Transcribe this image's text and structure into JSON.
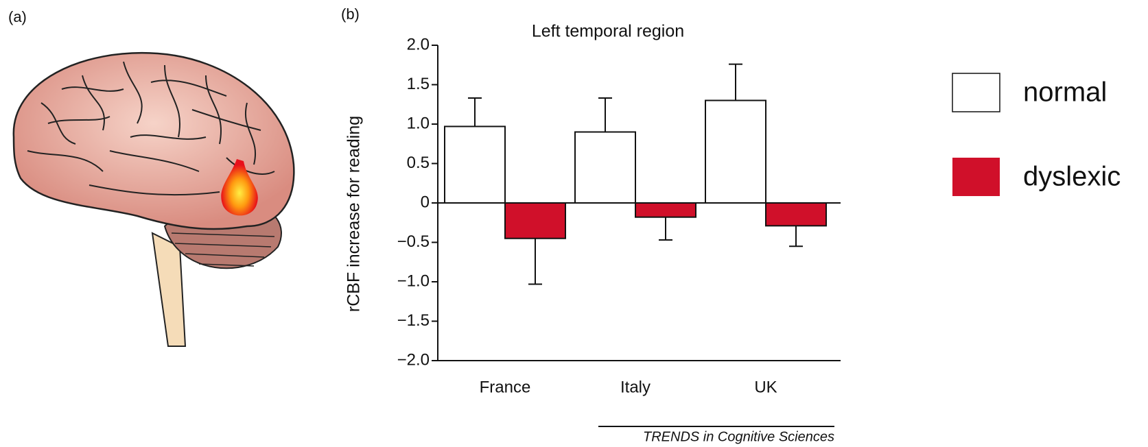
{
  "panel_a_label": "(a)",
  "panel_b_label": "(b)",
  "footer": "TRENDS in Cognitive Sciences",
  "chart_data": {
    "type": "bar",
    "title": "Left temporal region",
    "y_label": "rCBF increase for reading",
    "categories": [
      "France",
      "Italy",
      "UK"
    ],
    "series": [
      {
        "name": "normal",
        "color": "#ffffff",
        "values": [
          0.97,
          0.9,
          1.3
        ],
        "errors": [
          0.36,
          0.43,
          0.46
        ]
      },
      {
        "name": "dyslexic",
        "color": "#d0102a",
        "values": [
          -0.45,
          -0.18,
          -0.29
        ],
        "errors": [
          0.58,
          0.29,
          0.26
        ]
      }
    ],
    "ylim": [
      -2,
      2
    ],
    "yticks": [
      {
        "value": 2,
        "label": "2.0"
      },
      1.5,
      {
        "value": 1,
        "label": "1.0"
      },
      0.5,
      0,
      {
        "value": -0.5,
        "label": "−0.5"
      },
      {
        "value": -1,
        "label": "−1.0"
      },
      {
        "value": -1.5,
        "label": "−1.5"
      },
      {
        "value": -2,
        "label": "−2.0"
      }
    ],
    "legend": "right"
  }
}
